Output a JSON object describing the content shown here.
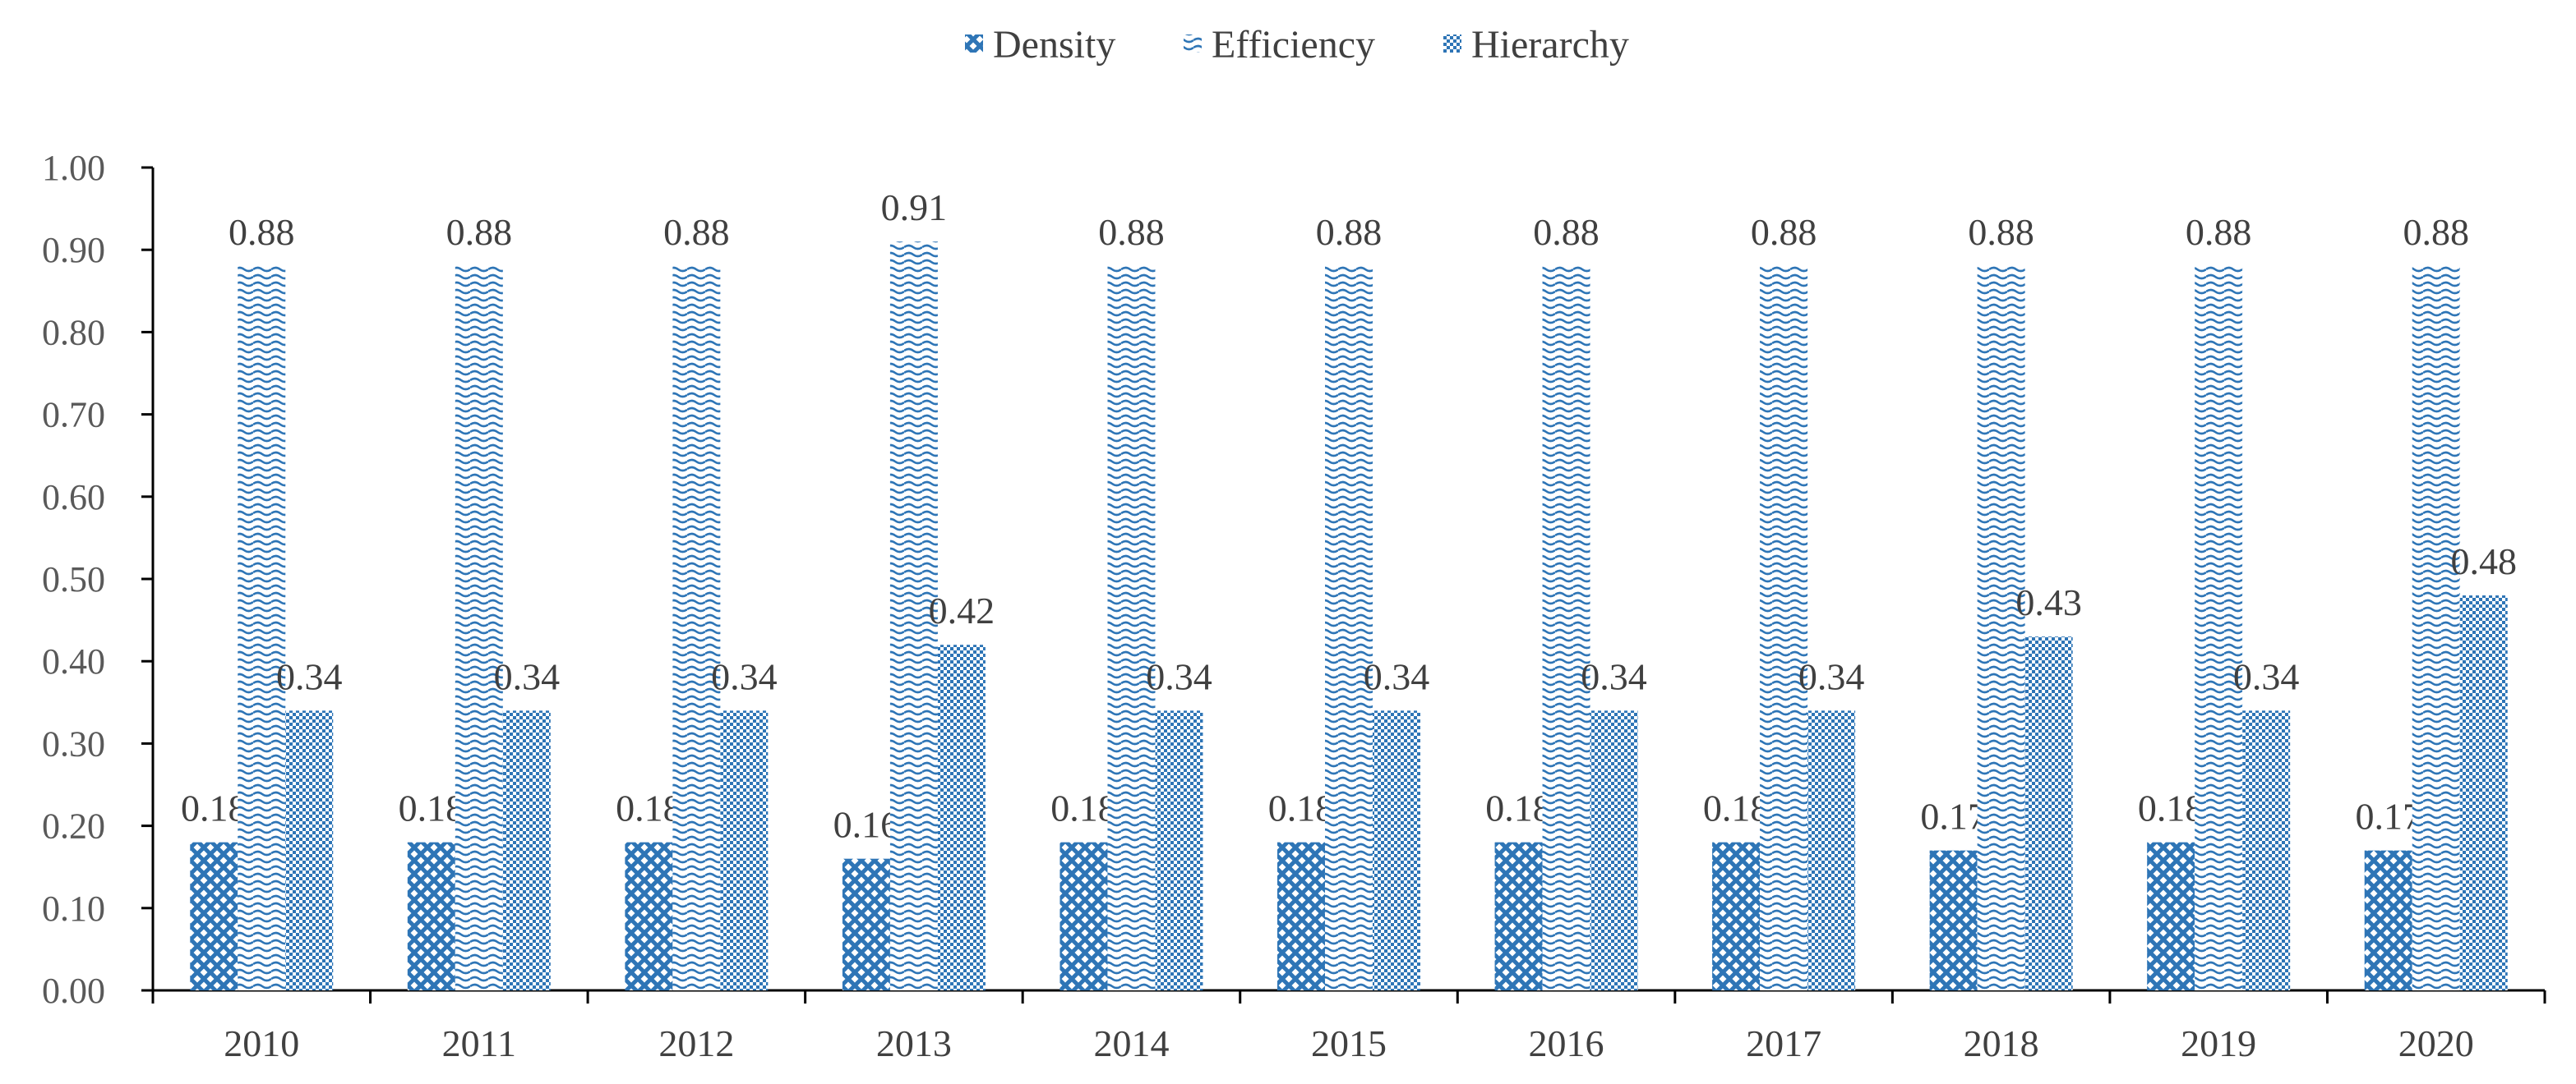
{
  "colors": {
    "series": "#2e75b6",
    "axis": "#000000",
    "text": "#404040"
  },
  "chart_data": {
    "type": "bar",
    "title": "",
    "xlabel": "",
    "ylabel": "",
    "ylim": [
      0,
      1.0
    ],
    "ytick_step": 0.1,
    "grid": false,
    "legend_position": "top-center",
    "categories": [
      "2010",
      "2011",
      "2012",
      "2013",
      "2014",
      "2015",
      "2016",
      "2017",
      "2018",
      "2019",
      "2020"
    ],
    "series": [
      {
        "name": "Density",
        "pattern": "crosshatch",
        "values": [
          0.18,
          0.18,
          0.18,
          0.16,
          0.18,
          0.18,
          0.18,
          0.18,
          0.17,
          0.18,
          0.17
        ]
      },
      {
        "name": "Efficiency",
        "pattern": "wave",
        "values": [
          0.88,
          0.88,
          0.88,
          0.91,
          0.88,
          0.88,
          0.88,
          0.88,
          0.88,
          0.88,
          0.88
        ]
      },
      {
        "name": "Hierarchy",
        "pattern": "dots",
        "values": [
          0.34,
          0.34,
          0.34,
          0.42,
          0.34,
          0.34,
          0.34,
          0.34,
          0.43,
          0.34,
          0.48
        ]
      }
    ]
  }
}
